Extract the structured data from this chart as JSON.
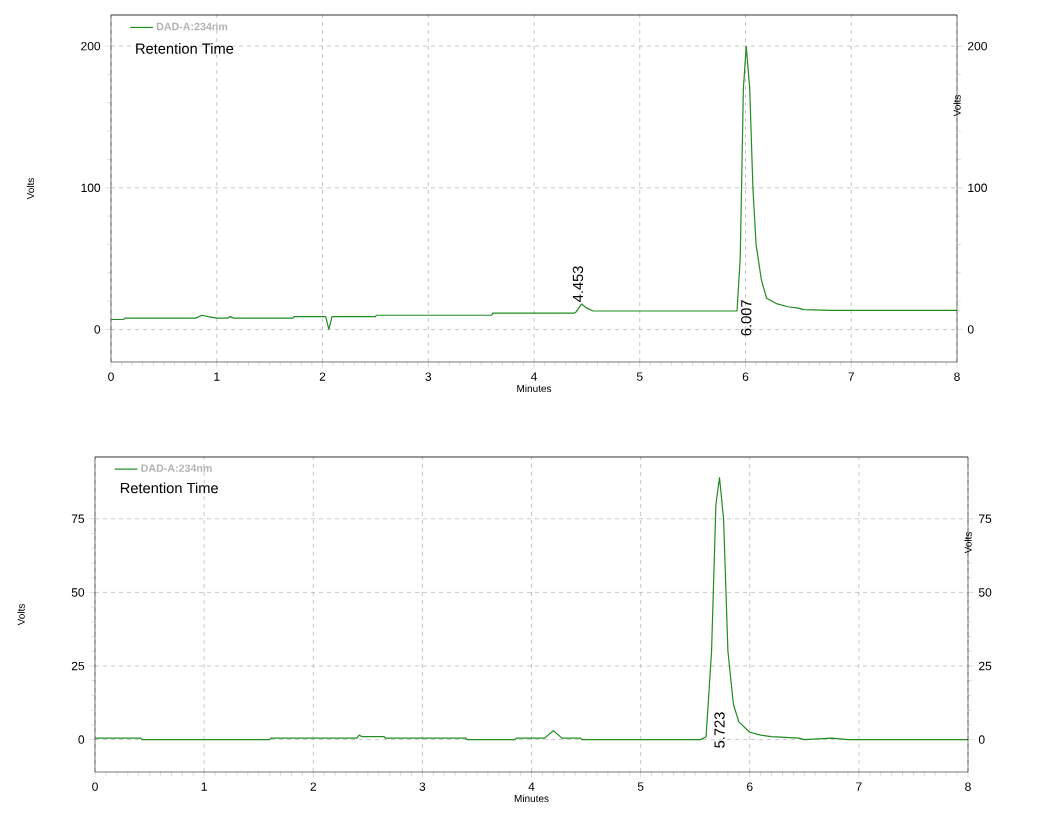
{
  "chart_data": [
    {
      "type": "line",
      "xlabel": "Minutes",
      "ylabel": "Volts",
      "y2label": "Volts",
      "xlim": [
        0,
        8
      ],
      "ylim": [
        -23,
        222
      ],
      "y2lim": [
        -23,
        222
      ],
      "xticks": [
        0,
        1,
        2,
        3,
        4,
        5,
        6,
        7,
        8
      ],
      "yticks": [
        0,
        100,
        200
      ],
      "y2ticks": [
        0,
        100,
        200
      ],
      "grid": true,
      "legend": "top left",
      "series": [
        {
          "name": "DAD-A:234nm",
          "color": "#228b22",
          "x": [
            0,
            0.12,
            0.13,
            0.8,
            0.86,
            0.92,
            1.0,
            1.1,
            1.13,
            1.16,
            1.72,
            1.73,
            2.03,
            2.06,
            2.09,
            2.5,
            2.51,
            3.6,
            3.61,
            4.38,
            4.4,
            4.45,
            4.5,
            4.56,
            4.6,
            5.88,
            5.92,
            5.95,
            5.98,
            6.007,
            6.04,
            6.07,
            6.1,
            6.15,
            6.2,
            6.3,
            6.4,
            6.5,
            6.55,
            6.8,
            8
          ],
          "values": [
            7,
            7,
            8,
            8,
            10,
            9,
            8,
            8,
            9,
            8,
            8,
            9,
            9,
            0,
            9,
            9,
            10,
            10,
            11.5,
            11.5,
            12.5,
            18,
            15,
            13,
            13,
            13,
            13,
            50,
            170,
            200,
            170,
            100,
            60,
            35,
            22,
            18,
            16,
            15,
            14,
            13.5,
            13.5
          ]
        }
      ],
      "annotations": [
        "Retention Time",
        {
          "text": "4.453",
          "x": 4.453,
          "y": 18
        },
        "6.007"
      ]
    },
    {
      "type": "line",
      "xlabel": "Minutes",
      "ylabel": "Volts",
      "y2label": "Volts",
      "xlim": [
        0,
        8
      ],
      "ylim": [
        -11,
        96
      ],
      "y2lim": [
        -11,
        96
      ],
      "xticks": [
        0,
        1,
        2,
        3,
        4,
        5,
        6,
        7,
        8
      ],
      "yticks": [
        0,
        25,
        50,
        75
      ],
      "y2ticks": [
        0,
        25,
        50,
        75
      ],
      "grid": true,
      "legend": "top left",
      "series": [
        {
          "name": "DAD-A:234nm",
          "color": "#228b22",
          "x": [
            0,
            0.42,
            0.43,
            1.6,
            1.61,
            2.4,
            2.42,
            2.45,
            2.65,
            2.66,
            3.4,
            3.41,
            3.85,
            3.86,
            4.12,
            4.2,
            4.28,
            4.45,
            4.46,
            5.55,
            5.6,
            5.65,
            5.69,
            5.723,
            5.76,
            5.8,
            5.85,
            5.9,
            6.0,
            6.1,
            6.2,
            6.45,
            6.5,
            6.75,
            6.9,
            8
          ],
          "values": [
            0.5,
            0.5,
            0,
            0,
            0.5,
            0.5,
            1.5,
            1,
            1,
            0.5,
            0.5,
            0,
            0,
            0.5,
            0.5,
            3,
            0.5,
            0.5,
            0,
            0,
            1,
            30,
            80,
            89,
            75,
            30,
            12,
            6,
            2.5,
            1.5,
            1,
            0.5,
            0,
            0.5,
            0,
            0
          ]
        }
      ],
      "annotations": [
        "Retention Time",
        "5.723"
      ]
    }
  ]
}
